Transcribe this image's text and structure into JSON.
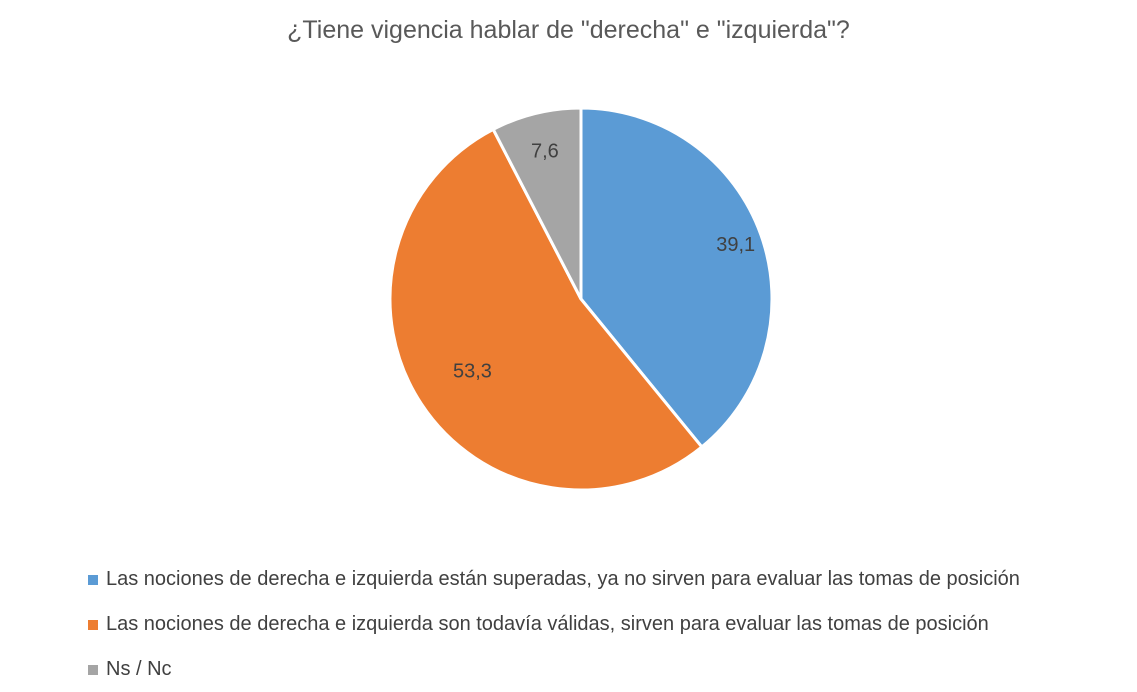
{
  "chart_data": {
    "type": "pie",
    "title": "¿Tiene vigencia hablar de \"derecha\" e \"izquierda\"?",
    "categories": [
      "Las nociones de derecha e izquierda están superadas, ya no sirven para evaluar las tomas de posición",
      "Las nociones de derecha e izquierda son todavía válidas, sirven para evaluar las tomas de posición",
      "Ns / Nc"
    ],
    "values": [
      39.1,
      53.3,
      7.6
    ],
    "data_labels": [
      "39,1",
      "53,3",
      "7,6"
    ],
    "colors": [
      "#5B9BD5",
      "#ED7D31",
      "#A5A5A5"
    ],
    "legend_position": "bottom",
    "start_angle": "12 o'clock, clockwise"
  }
}
